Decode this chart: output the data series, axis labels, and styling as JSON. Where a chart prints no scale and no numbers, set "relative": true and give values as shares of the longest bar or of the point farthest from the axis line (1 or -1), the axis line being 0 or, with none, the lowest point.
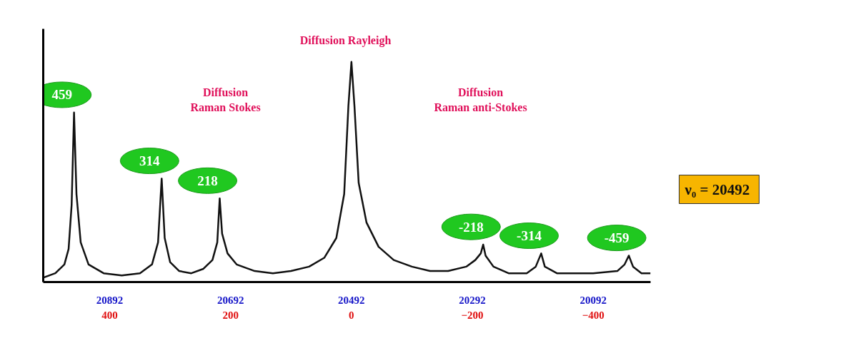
{
  "chart_data": {
    "type": "line",
    "relative": true,
    "xlim": [
      510,
      -495
    ],
    "xticks": [
      400,
      200,
      0,
      -200,
      -400
    ],
    "x2lim": [
      21002,
      19997
    ],
    "x2ticks": [
      20892,
      20692,
      20492,
      20292,
      20092
    ],
    "grid": false,
    "marker": "none",
    "line_style": "solid",
    "series": [
      {
        "color": "#111111",
        "x": [
          510,
          490,
          475,
          468,
          463,
          459,
          455,
          448,
          435,
          410,
          380,
          350,
          330,
          320,
          314,
          309,
          300,
          285,
          265,
          245,
          230,
          222,
          218,
          214,
          205,
          190,
          160,
          130,
          100,
          70,
          45,
          25,
          12,
          5,
          0,
          -5,
          -12,
          -25,
          -45,
          -70,
          -100,
          -130,
          -160,
          -190,
          -205,
          -214,
          -218,
          -222,
          -235,
          -260,
          -290,
          -305,
          -314,
          -320,
          -340,
          -400,
          -440,
          -452,
          -459,
          -466,
          -480,
          -495
        ],
        "values": [
          0.02,
          0.04,
          0.08,
          0.15,
          0.35,
          0.77,
          0.4,
          0.18,
          0.08,
          0.04,
          0.03,
          0.04,
          0.08,
          0.18,
          0.47,
          0.2,
          0.09,
          0.05,
          0.04,
          0.06,
          0.1,
          0.18,
          0.38,
          0.22,
          0.13,
          0.08,
          0.05,
          0.04,
          0.05,
          0.07,
          0.11,
          0.2,
          0.4,
          0.8,
          1.0,
          0.8,
          0.45,
          0.27,
          0.16,
          0.1,
          0.07,
          0.05,
          0.05,
          0.07,
          0.1,
          0.13,
          0.17,
          0.12,
          0.07,
          0.04,
          0.04,
          0.07,
          0.13,
          0.07,
          0.04,
          0.04,
          0.05,
          0.08,
          0.12,
          0.07,
          0.04,
          0.04
        ]
      }
    ],
    "annotations": [
      "Diffusion  Rayleigh",
      "Diffusion\nRaman Stokes",
      "Diffusion\nRaman anti-Stokes",
      "ν₀  = 20492",
      {
        "text": "459",
        "x": 459,
        "y": 0.77
      },
      {
        "text": "314",
        "x": 314,
        "y": 0.47
      },
      {
        "text": "218",
        "x": 218,
        "y": 0.38
      },
      {
        "text": "-218",
        "x": -218,
        "y": 0.17
      },
      {
        "text": "-314",
        "x": -314,
        "y": 0.13
      },
      {
        "text": "-459",
        "x": -459,
        "y": 0.12
      }
    ]
  }
}
